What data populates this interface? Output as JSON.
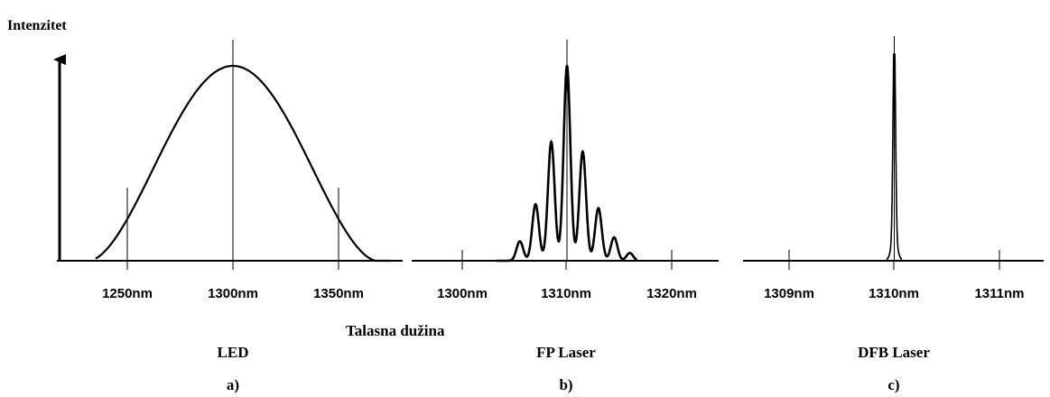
{
  "ylabel": "Intenzitet",
  "xlabel": "Talasna dužina",
  "colors": {
    "line": "#000000",
    "background": "#ffffff"
  },
  "chart_data": [
    {
      "type": "line",
      "panel": "a)",
      "title": "LED",
      "xlabel": "",
      "ylabel": "",
      "xlim": [
        1235,
        1375
      ],
      "ylim": [
        0,
        1
      ],
      "x_ticks": [
        1250,
        1300,
        1350
      ],
      "tick_labels": [
        "1250nm",
        "1300nm",
        "1350nm"
      ],
      "peak": 1300,
      "series": [
        {
          "values_x": [
            1235,
            1245,
            1250,
            1260,
            1270,
            1280,
            1290,
            1295,
            1300,
            1305,
            1310,
            1320,
            1330,
            1340,
            1350,
            1360,
            1370,
            1375
          ],
          "values_y": [
            0.0,
            0.15,
            0.31,
            0.56,
            0.76,
            0.9,
            0.98,
            1.0,
            1.0,
            1.0,
            0.98,
            0.9,
            0.76,
            0.56,
            0.31,
            0.15,
            0.02,
            0.0
          ]
        }
      ]
    },
    {
      "type": "line",
      "panel": "b)",
      "title": "FP Laser",
      "xlabel": "",
      "ylabel": "",
      "xlim": [
        1296,
        1323
      ],
      "ylim": [
        0,
        1
      ],
      "x_ticks": [
        1300,
        1310,
        1320
      ],
      "tick_labels": [
        "1300nm",
        "1310nm",
        "1320nm"
      ],
      "peak": 1310,
      "mode_spacing": 1.5,
      "modes": [
        {
          "x": 1305.5,
          "y": 0.1
        },
        {
          "x": 1307.0,
          "y": 0.29
        },
        {
          "x": 1308.5,
          "y": 0.61
        },
        {
          "x": 1310.0,
          "y": 1.0
        },
        {
          "x": 1311.5,
          "y": 0.56
        },
        {
          "x": 1313.0,
          "y": 0.27
        },
        {
          "x": 1314.5,
          "y": 0.12
        },
        {
          "x": 1316.0,
          "y": 0.04
        }
      ]
    },
    {
      "type": "line",
      "panel": "c)",
      "title": "DFB Laser",
      "xlabel": "",
      "ylabel": "",
      "xlim": [
        1308.5,
        1311.7
      ],
      "ylim": [
        0,
        1
      ],
      "x_ticks": [
        1309,
        1310,
        1311
      ],
      "tick_labels": [
        "1309nm",
        "1310nm",
        "1311nm"
      ],
      "peak": 1310,
      "modes": [
        {
          "x": 1310.0,
          "y": 1.0
        }
      ]
    }
  ]
}
